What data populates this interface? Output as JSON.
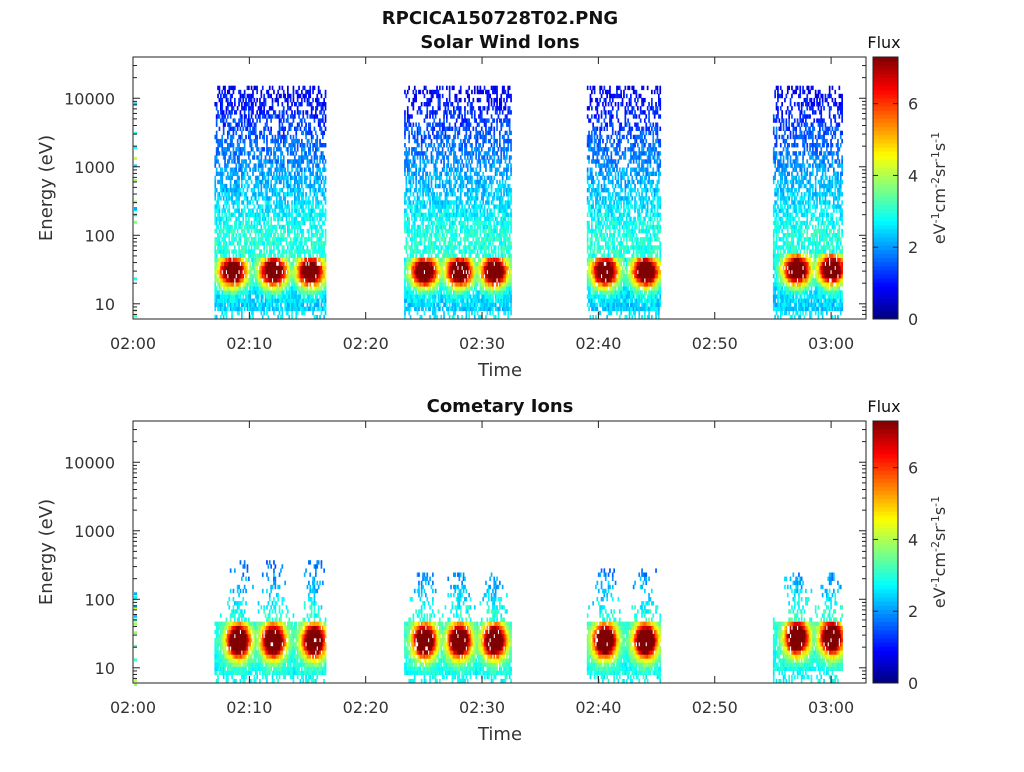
{
  "figure": {
    "title": "RPCICA150728T02.PNG"
  },
  "chart_data": [
    {
      "type": "heatmap",
      "title": "Solar Wind Ions",
      "xlabel": "Time",
      "ylabel": "Energy (eV)",
      "yscale": "log",
      "ylim": [
        6,
        40000
      ],
      "xlim": [
        "02:00",
        "03:03"
      ],
      "xticks": [
        "02:00",
        "02:10",
        "02:20",
        "02:30",
        "02:40",
        "02:50",
        "03:00"
      ],
      "yticks": [
        10,
        100,
        1000,
        10000
      ],
      "colorbar": {
        "title": "Flux",
        "label": "eV-1cm-2sr-1s-1",
        "ticks": [
          0,
          2,
          4,
          6
        ],
        "range": [
          0,
          7.3
        ],
        "colormap": "jet"
      },
      "bursts": [
        {
          "start": "02:07",
          "end": "02:16.5",
          "peak_energy_ev": 30,
          "peak_flux": 7,
          "max_energy_ev": 15000,
          "peaks_at": [
            "02:08.5",
            "02:12",
            "02:15.2"
          ]
        },
        {
          "start": "02:23.3",
          "end": "02:32.5",
          "peak_energy_ev": 30,
          "peak_flux": 7,
          "max_energy_ev": 15000,
          "peaks_at": [
            "02:25",
            "02:28",
            "02:31"
          ]
        },
        {
          "start": "02:39",
          "end": "02:45.3",
          "peak_energy_ev": 30,
          "peak_flux": 7,
          "max_energy_ev": 15000,
          "peaks_at": [
            "02:40.5",
            "02:44"
          ]
        },
        {
          "start": "02:55",
          "end": "03:01",
          "peak_energy_ev": 32,
          "peak_flux": 7,
          "max_energy_ev": 15000,
          "peaks_at": [
            "02:57",
            "03:00"
          ]
        }
      ]
    },
    {
      "type": "heatmap",
      "title": "Cometary Ions",
      "xlabel": "Time",
      "ylabel": "Energy (eV)",
      "yscale": "log",
      "ylim": [
        6,
        40000
      ],
      "xlim": [
        "02:00",
        "03:03"
      ],
      "xticks": [
        "02:00",
        "02:10",
        "02:20",
        "02:30",
        "02:40",
        "02:50",
        "03:00"
      ],
      "yticks": [
        10,
        100,
        1000,
        10000
      ],
      "colorbar": {
        "title": "Flux",
        "label": "eV-1cm-2sr-1s-1",
        "ticks": [
          0,
          2,
          4,
          6
        ],
        "range": [
          0,
          7.3
        ],
        "colormap": "jet"
      },
      "bursts": [
        {
          "start": "02:07",
          "end": "02:16.5",
          "peak_energy_ev": 25,
          "peak_flux": 7.3,
          "max_energy_ev": 350,
          "peaks_at": [
            "02:09",
            "02:12",
            "02:15.5"
          ]
        },
        {
          "start": "02:23.3",
          "end": "02:32.5",
          "peak_energy_ev": 25,
          "peak_flux": 7.3,
          "max_energy_ev": 250,
          "peaks_at": [
            "02:25",
            "02:28",
            "02:31"
          ]
        },
        {
          "start": "02:39",
          "end": "02:45.3",
          "peak_energy_ev": 25,
          "peak_flux": 7.3,
          "max_energy_ev": 300,
          "peaks_at": [
            "02:40.5",
            "02:44"
          ]
        },
        {
          "start": "02:55",
          "end": "03:01",
          "peak_energy_ev": 28,
          "peak_flux": 7.3,
          "max_energy_ev": 250,
          "peaks_at": [
            "02:57",
            "03:00"
          ]
        }
      ]
    }
  ]
}
